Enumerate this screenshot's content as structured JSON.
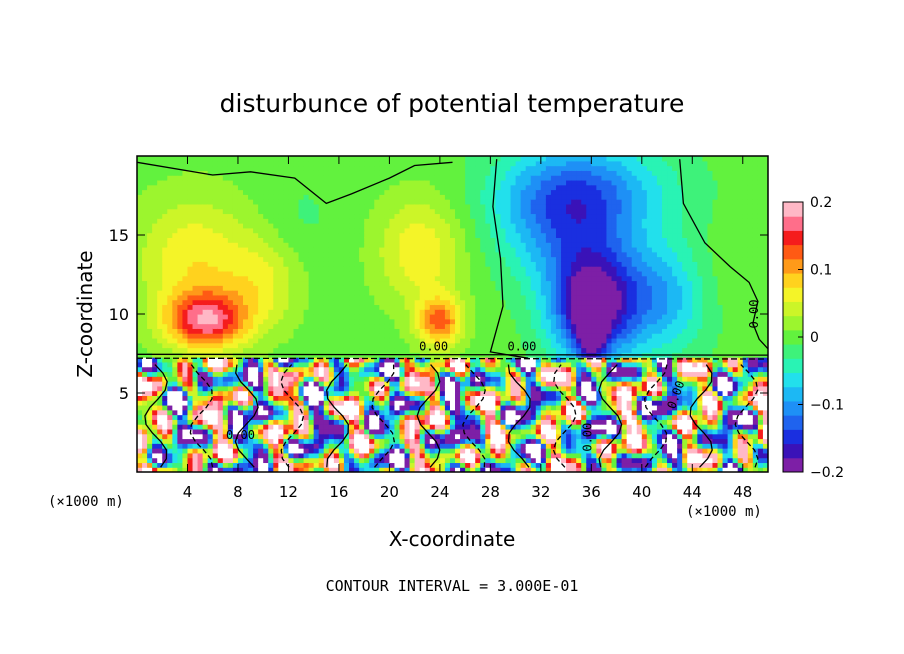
{
  "chart_data": {
    "type": "heatmap",
    "title": "disturbunce of potential temperature",
    "xlabel": "X-coordinate",
    "ylabel": "Z-coordinate",
    "x_unit_label_left": "(×1000 m)",
    "x_unit_label_right": "(×1000 m)",
    "xlim": [
      0,
      50
    ],
    "ylim": [
      0,
      20
    ],
    "x_ticks": [
      4,
      8,
      12,
      16,
      20,
      24,
      28,
      32,
      36,
      40,
      44,
      48
    ],
    "y_ticks": [
      5,
      10,
      15
    ],
    "contour_interval_text": "CONTOUR INTERVAL = 3.000E-01",
    "contour_labels": [
      "0.00",
      "0.00",
      "0.00",
      "0.00",
      "0.00",
      "0.00"
    ],
    "colorbar": {
      "range": [
        -0.2,
        0.2
      ],
      "tick_values": [
        0.2,
        0.1,
        0,
        -0.1,
        -0.2
      ],
      "tick_labels": [
        "0.2",
        "0.1",
        "0",
        "−0.1",
        "−0.2"
      ],
      "colors": [
        "#7d1fa6",
        "#3a12b8",
        "#1a2fe0",
        "#1f63ee",
        "#1e90f6",
        "#1cb8f4",
        "#22e0ec",
        "#29f3b4",
        "#3ef27a",
        "#62f23e",
        "#9cf52e",
        "#ccf528",
        "#f4f428",
        "#ffd21e",
        "#ff9a19",
        "#ff5a14",
        "#f51c1c",
        "#ff6e8a",
        "#ffb8c6"
      ]
    },
    "features": [
      {
        "kind": "warm",
        "x": 5.5,
        "z": 9.6,
        "value": 0.16,
        "sx": 3.2,
        "sz": 1.8
      },
      {
        "kind": "warm",
        "x": 4.5,
        "z": 13.5,
        "value": 0.07,
        "sx": 4.5,
        "sz": 4.0
      },
      {
        "kind": "warm",
        "x": 10.0,
        "z": 12.0,
        "value": 0.05,
        "sx": 3.0,
        "sz": 3.0
      },
      {
        "kind": "warm",
        "x": 24.0,
        "z": 9.5,
        "value": 0.12,
        "sx": 1.8,
        "sz": 1.6
      },
      {
        "kind": "warm",
        "x": 22.5,
        "z": 14.0,
        "value": 0.07,
        "sx": 3.5,
        "sz": 3.5
      },
      {
        "kind": "cool",
        "x": 13.0,
        "z": 16.0,
        "value": -0.015,
        "sx": 3.0,
        "sz": 3.0
      },
      {
        "kind": "cool",
        "x": 36.0,
        "z": 10.5,
        "value": -0.19,
        "sx": 3.4,
        "sz": 3.6
      },
      {
        "kind": "cool",
        "x": 34.0,
        "z": 16.0,
        "value": -0.1,
        "sx": 5.5,
        "sz": 4.0
      },
      {
        "kind": "cool",
        "x": 41.5,
        "z": 11.0,
        "value": -0.09,
        "sx": 4.0,
        "sz": 3.5
      },
      {
        "kind": "cool",
        "x": 36.0,
        "z": 18.0,
        "value": -0.07,
        "sx": 7.0,
        "sz": 3.0
      },
      {
        "kind": "warm",
        "x": 46.0,
        "z": 12.0,
        "value": 0.015,
        "sx": 3.0,
        "sz": 3.0
      }
    ],
    "inversion_z": 7.3,
    "zero_contour_top": [
      [
        0,
        19.6
      ],
      [
        6,
        18.8
      ],
      [
        9,
        19.0
      ],
      [
        12.5,
        18.6
      ],
      [
        15,
        17.0
      ],
      [
        17,
        17.6
      ],
      [
        20,
        18.6
      ],
      [
        22,
        19.4
      ],
      [
        25,
        19.6
      ]
    ],
    "zero_contour_right": [
      [
        28.5,
        19.8
      ],
      [
        28.2,
        16.8
      ],
      [
        28.8,
        13.5
      ],
      [
        29.0,
        10.5
      ],
      [
        28.0,
        7.6
      ],
      [
        29.5,
        7.4
      ],
      [
        31,
        7.2
      ]
    ],
    "zero_contour_far": [
      [
        43.0,
        19.8
      ],
      [
        43.3,
        17.0
      ],
      [
        45.0,
        14.5
      ],
      [
        47.0,
        13.0
      ],
      [
        48.5,
        12.0
      ],
      [
        49.2,
        10.8
      ],
      [
        48.8,
        9.4
      ],
      [
        49.3,
        8.4
      ],
      [
        50,
        7.8
      ]
    ]
  }
}
